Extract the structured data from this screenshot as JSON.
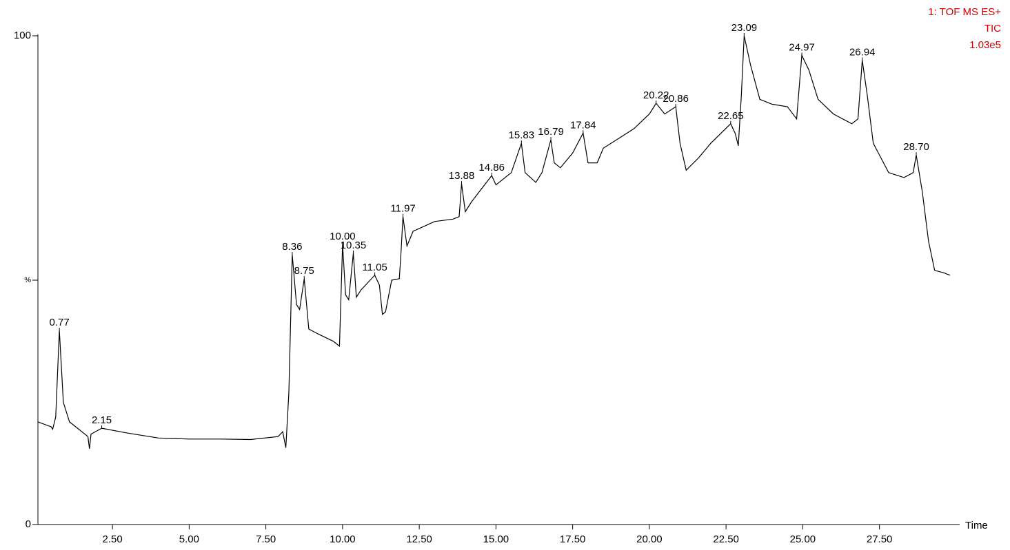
{
  "chart_data": {
    "type": "line",
    "annotations": [
      "1: TOF MS ES+",
      "TIC",
      "1.03e5"
    ],
    "annotation_color": "#cc0000",
    "xlabel": "Time",
    "color": "#000000",
    "x": [
      0.07,
      0.5,
      0.55,
      0.65,
      0.77,
      0.9,
      1.1,
      1.4,
      1.7,
      1.75,
      1.8,
      2.15,
      3,
      4,
      5,
      6,
      7,
      7.9,
      8.05,
      8.15,
      8.25,
      8.36,
      8.5,
      8.6,
      8.75,
      8.9,
      9.2,
      9.7,
      9.9,
      10.0,
      10.1,
      10.2,
      10.35,
      10.45,
      10.6,
      11.05,
      11.2,
      11.3,
      11.4,
      11.6,
      11.85,
      11.9,
      11.97,
      12.1,
      12.3,
      13,
      13.6,
      13.8,
      13.88,
      14.0,
      14.2,
      14.86,
      15.0,
      15.5,
      15.83,
      15.95,
      16.3,
      16.5,
      16.79,
      16.9,
      17.1,
      17.5,
      17.84,
      18.0,
      18.3,
      18.5,
      19.0,
      19.5,
      20.0,
      20.22,
      20.5,
      20.86,
      21.0,
      21.2,
      21.6,
      22.0,
      22.65,
      22.8,
      22.9,
      23.0,
      23.09,
      23.3,
      23.6,
      24.0,
      24.5,
      24.8,
      24.97,
      25.2,
      25.5,
      26.0,
      26.6,
      26.8,
      26.94,
      27.1,
      27.3,
      27.8,
      28.3,
      28.6,
      28.7,
      28.9,
      29.1,
      29.3,
      29.6,
      29.8
    ],
    "values": [
      21,
      20,
      19.5,
      22,
      39.7,
      25,
      21,
      19.5,
      18,
      15.5,
      18.5,
      19.7,
      18.7,
      17.7,
      17.5,
      17.5,
      17.4,
      18,
      19,
      15.7,
      27,
      55.2,
      45,
      44,
      50.3,
      40,
      39,
      37.5,
      36.5,
      57.3,
      47,
      46,
      55.5,
      46.5,
      48,
      51,
      49,
      43,
      43.5,
      50,
      50.3,
      55,
      63,
      57,
      60,
      62,
      62.5,
      63,
      69.7,
      64,
      66,
      71.4,
      69.5,
      72,
      78,
      72,
      70,
      72,
      78.7,
      74,
      73,
      76,
      80.1,
      74,
      74,
      77,
      79,
      81,
      84,
      86.2,
      84,
      85.5,
      78,
      72.5,
      75,
      78,
      82,
      80,
      77.5,
      88,
      100,
      94,
      87,
      86,
      85.5,
      83,
      96,
      93,
      87,
      84,
      82,
      83,
      95,
      88,
      78,
      72,
      71,
      72,
      75.6,
      68,
      58,
      52,
      51.5,
      51
    ],
    "peaks": [
      {
        "x": 0.77,
        "y": 39.7,
        "label": "0.77"
      },
      {
        "x": 2.15,
        "y": 19.7,
        "label": "2.15"
      },
      {
        "x": 8.36,
        "y": 55.2,
        "label": "8.36"
      },
      {
        "x": 8.75,
        "y": 50.3,
        "label": "8.75"
      },
      {
        "x": 10.0,
        "y": 57.3,
        "label": "10.00"
      },
      {
        "x": 10.35,
        "y": 55.5,
        "label": "10.35"
      },
      {
        "x": 11.05,
        "y": 51,
        "label": "11.05"
      },
      {
        "x": 11.97,
        "y": 63,
        "label": "11.97"
      },
      {
        "x": 13.88,
        "y": 69.7,
        "label": "13.88"
      },
      {
        "x": 14.86,
        "y": 71.4,
        "label": "14.86"
      },
      {
        "x": 15.83,
        "y": 78,
        "label": "15.83"
      },
      {
        "x": 16.79,
        "y": 78.7,
        "label": "16.79"
      },
      {
        "x": 17.84,
        "y": 80.1,
        "label": "17.84"
      },
      {
        "x": 20.22,
        "y": 86.2,
        "label": "20.22"
      },
      {
        "x": 20.86,
        "y": 85.5,
        "label": "20.86"
      },
      {
        "x": 22.65,
        "y": 82,
        "label": "22.65"
      },
      {
        "x": 23.09,
        "y": 100,
        "label": "23.09"
      },
      {
        "x": 24.97,
        "y": 96,
        "label": "24.97"
      },
      {
        "x": 26.94,
        "y": 95,
        "label": "26.94"
      },
      {
        "x": 28.7,
        "y": 75.6,
        "label": "28.70"
      }
    ],
    "xlim": [
      0.07,
      30.07
    ],
    "xticks": [
      {
        "value": 2.5,
        "label": "2.50"
      },
      {
        "value": 5,
        "label": "5.00"
      },
      {
        "value": 7.5,
        "label": "7.50"
      },
      {
        "value": 10,
        "label": "10.00"
      },
      {
        "value": 12.5,
        "label": "12.50"
      },
      {
        "value": 15,
        "label": "15.00"
      },
      {
        "value": 17.5,
        "label": "17.50"
      },
      {
        "value": 20,
        "label": "20.00"
      },
      {
        "value": 22.5,
        "label": "22.50"
      },
      {
        "value": 25,
        "label": "25.00"
      },
      {
        "value": 27.5,
        "label": "27.50"
      }
    ],
    "ylim": [
      0,
      100
    ],
    "yticks": [
      0,
      {
        "value": 50,
        "label": "%"
      },
      100
    ]
  }
}
